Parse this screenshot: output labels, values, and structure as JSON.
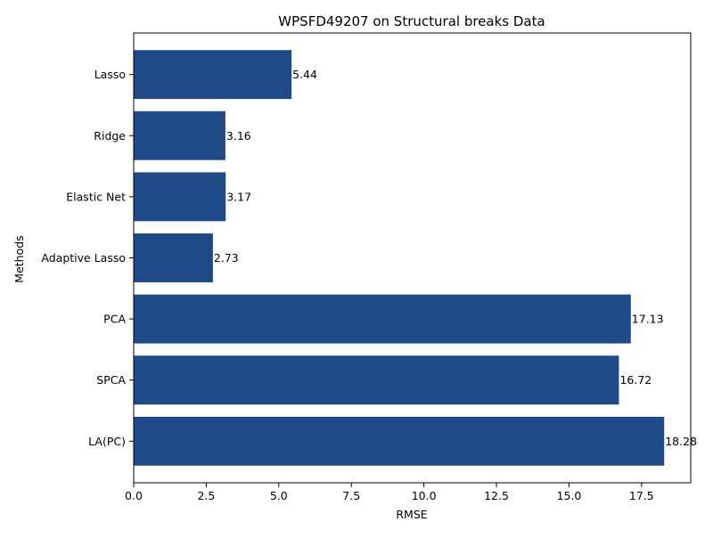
{
  "chart_data": {
    "type": "bar",
    "orientation": "horizontal",
    "title": "WPSFD49207 on Structural breaks Data",
    "xlabel": "RMSE",
    "ylabel": "Methods",
    "categories": [
      "Lasso",
      "Ridge",
      "Elastic Net",
      "Adaptive Lasso",
      "PCA",
      "SPCA",
      "LA(PC)"
    ],
    "values": [
      5.44,
      3.16,
      3.17,
      2.73,
      17.13,
      16.72,
      18.28
    ],
    "data_labels": [
      "5.44",
      "3.16",
      "3.17",
      "2.73",
      "17.13",
      "16.72",
      "18.28"
    ],
    "xlim": [
      0,
      19.194
    ],
    "xticks": [
      0,
      2.5,
      5,
      7.5,
      10,
      12.5,
      15,
      17.5
    ],
    "xtick_labels": [
      "0.0",
      "2.5",
      "5.0",
      "7.5",
      "10.0",
      "12.5",
      "15.0",
      "17.5"
    ],
    "bar_color": "#204a87",
    "grid": false,
    "legend": "none"
  }
}
